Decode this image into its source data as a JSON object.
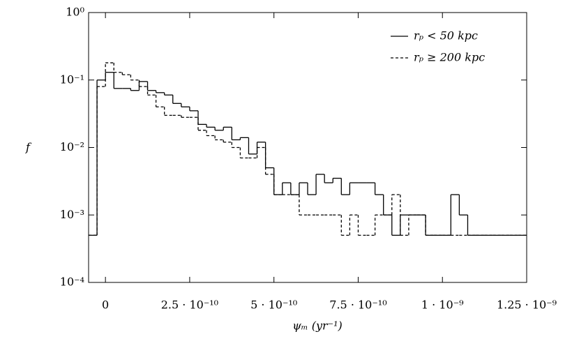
{
  "chart_data": {
    "type": "step_histogram",
    "xlabel": "ψₘ (yr⁻¹)",
    "ylabel": "f",
    "bins": [
      -5e-11,
      -2.5e-11,
      0,
      2.5e-11,
      5e-11,
      7.5e-11,
      1e-10,
      1.25e-10,
      1.5e-10,
      1.75e-10,
      2e-10,
      2.25e-10,
      2.5e-10,
      2.75e-10,
      3e-10,
      3.25e-10,
      3.5e-10,
      3.75e-10,
      4e-10,
      4.25e-10,
      4.5e-10,
      4.75e-10,
      5e-10,
      5.25e-10,
      5.5e-10,
      5.75e-10,
      6e-10,
      6.25e-10,
      6.5e-10,
      6.75e-10,
      7e-10,
      7.25e-10,
      7.5e-10,
      7.75e-10,
      8e-10,
      8.25e-10,
      8.5e-10,
      8.75e-10,
      9e-10,
      9.25e-10,
      9.5e-10,
      9.75e-10,
      1e-09,
      1.025e-09,
      1.05e-09,
      1.075e-09,
      1.1e-09,
      1.125e-09,
      1.15e-09,
      1.175e-09,
      1.2e-09,
      1.225e-09,
      1.25e-09
    ],
    "series": [
      {
        "name": "rₚ < 50 kpc",
        "color": "#000000",
        "linestyle": "solid",
        "values": [
          0.0005,
          0.1,
          0.13,
          0.075,
          0.075,
          0.07,
          0.095,
          0.07,
          0.065,
          0.06,
          0.045,
          0.04,
          0.035,
          0.022,
          0.02,
          0.018,
          0.02,
          0.013,
          0.014,
          0.008,
          0.012,
          0.005,
          0.002,
          0.003,
          0.002,
          0.003,
          0.002,
          0.004,
          0.003,
          0.0035,
          0.002,
          0.003,
          0.003,
          0.003,
          0.002,
          0.001,
          0.0005,
          0.001,
          0.001,
          0.001,
          0.0005,
          0.0005,
          0.0005,
          0.002,
          0.001,
          0.0005,
          0.0005,
          0.0005,
          0.0005,
          0.0005,
          0.0005,
          0.0005
        ]
      },
      {
        "name": "rₚ ≥ 200 kpc",
        "color": "#000000",
        "linestyle": "dashed",
        "values": [
          0.0005,
          0.08,
          0.18,
          0.13,
          0.12,
          0.1,
          0.08,
          0.06,
          0.04,
          0.03,
          0.03,
          0.028,
          0.028,
          0.018,
          0.015,
          0.013,
          0.012,
          0.01,
          0.007,
          0.007,
          0.01,
          0.004,
          0.002,
          0.002,
          0.002,
          0.001,
          0.001,
          0.001,
          0.001,
          0.001,
          0.0005,
          0.001,
          0.0005,
          0.0005,
          0.001,
          0.001,
          0.002,
          0.0005,
          0.001,
          0.001,
          0.0005,
          0.0005,
          0.0005,
          0.0005,
          0.0005,
          0.0005,
          0.0005,
          0.0005,
          0.0005,
          0.0005,
          0.0005,
          0.0005
        ]
      }
    ],
    "xlim": [
      -5e-11,
      1.25e-09
    ],
    "xticks": [
      0,
      {
        "value": 2.5e-10,
        "label": "2.5 · 10⁻¹⁰"
      },
      {
        "value": 5e-10,
        "label": "5 · 10⁻¹⁰"
      },
      {
        "value": 7.5e-10,
        "label": "7.5 · 10⁻¹⁰"
      },
      {
        "value": 1e-09,
        "label": "1 · 10⁻⁹"
      },
      {
        "value": 1.25e-09,
        "label": "1.25 · 10⁻⁹"
      }
    ],
    "ylim": [
      0.0001,
      1
    ],
    "ylog": true,
    "yticks": [
      {
        "value": 0.0001,
        "label": "10⁻⁴"
      },
      {
        "value": 0.001,
        "label": "10⁻³"
      },
      {
        "value": 0.01,
        "label": "10⁻²"
      },
      {
        "value": 0.1,
        "label": "10⁻¹"
      },
      {
        "value": 1,
        "label": "10⁰"
      }
    ],
    "legend": "upper right"
  }
}
